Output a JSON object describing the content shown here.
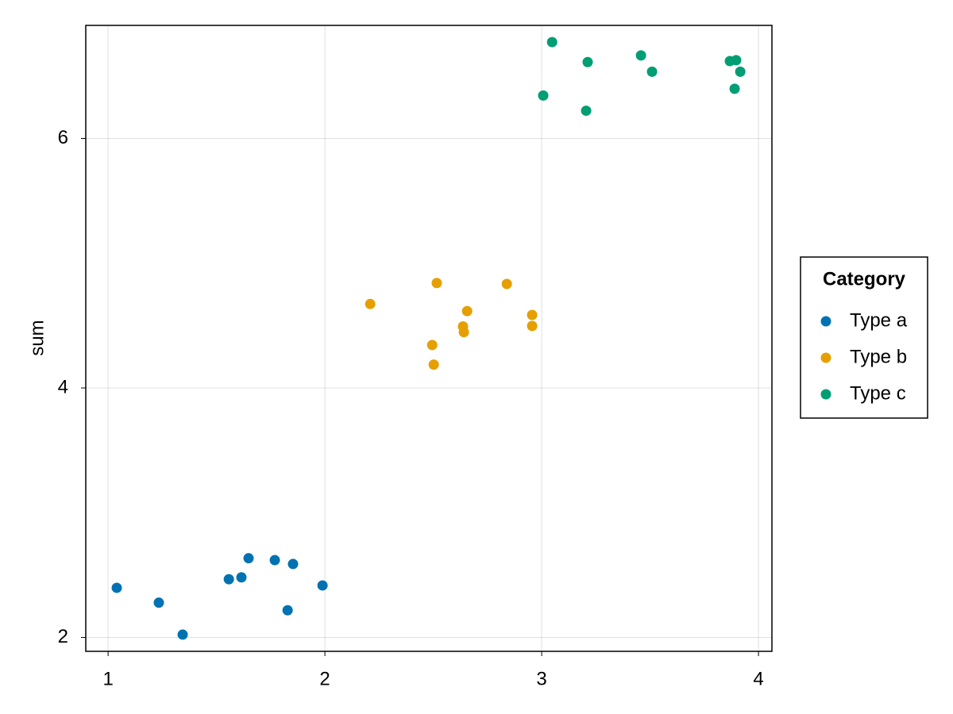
{
  "chart_data": {
    "type": "scatter",
    "y_label": "sum",
    "xlim": [
      0.897,
      4.062
    ],
    "ylim": [
      1.889,
      6.906
    ],
    "xticks": [
      1,
      2,
      3,
      4
    ],
    "yticks": [
      2,
      4,
      6
    ],
    "grid": true,
    "legend_title": "Category",
    "legend_position": "right",
    "series": [
      {
        "name": "Type a",
        "color": "#0072b2",
        "x": [
          1.04,
          1.234,
          1.344,
          1.557,
          1.615,
          1.648,
          1.769,
          1.853,
          1.828,
          1.989
        ],
        "values": [
          2.398,
          2.279,
          2.023,
          2.467,
          2.482,
          2.635,
          2.62,
          2.589,
          2.218,
          2.417
        ]
      },
      {
        "name": "Type b",
        "color": "#e69f00",
        "x": [
          2.209,
          2.516,
          2.839,
          2.656,
          2.956,
          2.637,
          2.956,
          2.641,
          2.495,
          2.502
        ],
        "values": [
          4.673,
          4.841,
          4.834,
          4.616,
          4.585,
          4.493,
          4.497,
          4.447,
          4.344,
          4.187
        ]
      },
      {
        "name": "Type c",
        "color": "#009e73",
        "x": [
          3.048,
          3.212,
          3.458,
          3.509,
          3.868,
          3.897,
          3.916,
          3.89,
          3.007,
          3.205
        ],
        "values": [
          6.772,
          6.612,
          6.665,
          6.535,
          6.62,
          6.627,
          6.535,
          6.398,
          6.344,
          6.222
        ]
      }
    ]
  }
}
